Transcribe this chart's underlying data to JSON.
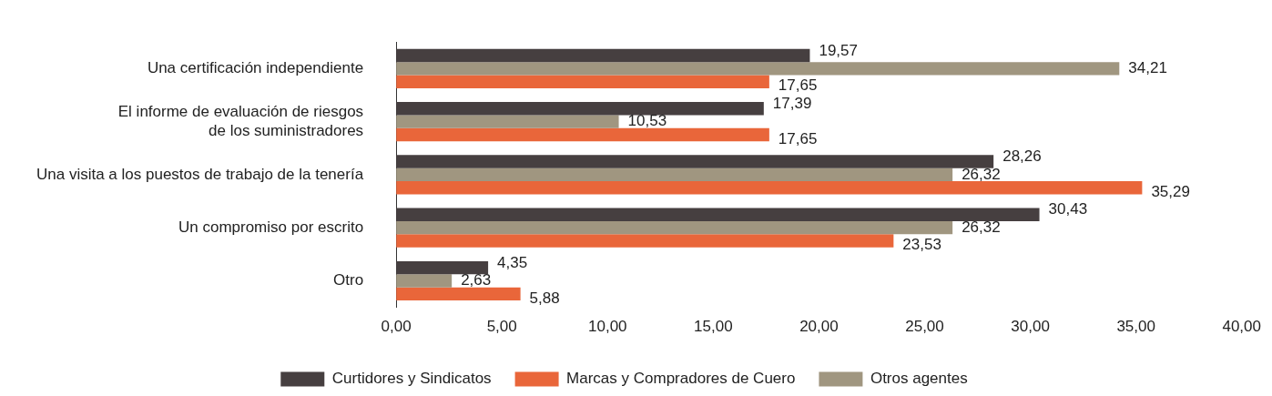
{
  "chart_data": {
    "type": "bar",
    "orientation": "horizontal",
    "categories": [
      "Una certificación independiente",
      "El informe de evaluación de riesgos\nde los suministradores",
      "Una visita a los puestos de trabajo de la tenería",
      "Un compromiso por escrito",
      "Otro"
    ],
    "series": [
      {
        "name": "Curtidores y Sindicatos",
        "color": "#463f40",
        "values": [
          19.57,
          17.39,
          28.26,
          30.43,
          4.35
        ],
        "value_labels": [
          "19,57",
          "17,39",
          "28,26",
          "30,43",
          "4,35"
        ]
      },
      {
        "name": "Marcas y Compradores de Cuero",
        "color": "#e9663a",
        "values": [
          17.65,
          17.65,
          35.29,
          23.53,
          5.88
        ],
        "value_labels": [
          "17,65",
          "17,65",
          "35,29",
          "23,53",
          "5,88"
        ]
      },
      {
        "name": "Otros agentes",
        "color": "#a09680",
        "values": [
          34.21,
          10.53,
          26.32,
          26.32,
          2.63
        ],
        "value_labels": [
          "34,21",
          "10,53",
          "26,32",
          "26,32",
          "2,63"
        ]
      }
    ],
    "xlim": [
      0,
      40
    ],
    "xticks": [
      {
        "value": 0,
        "label": "0,00"
      },
      {
        "value": 5,
        "label": "5,00"
      },
      {
        "value": 10,
        "label": "10,00"
      },
      {
        "value": 15,
        "label": "15,00"
      },
      {
        "value": 20,
        "label": "20,00"
      },
      {
        "value": 25,
        "label": "25,00"
      },
      {
        "value": 30,
        "label": "30,00"
      },
      {
        "value": 35,
        "label": "35,00"
      },
      {
        "value": 40,
        "label": "40,00"
      }
    ],
    "grid": false,
    "legend": "bottom"
  }
}
